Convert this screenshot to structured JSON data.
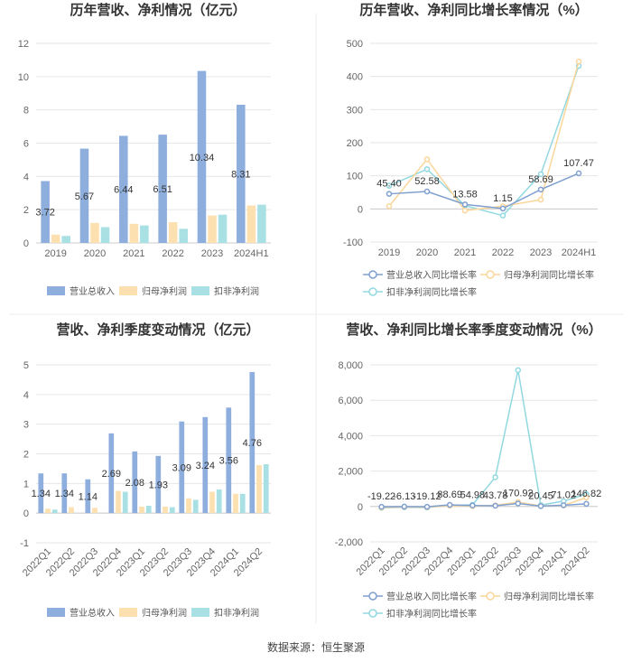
{
  "colors": {
    "revenue": "#8eaedd",
    "net": "#fde0b0",
    "deducted": "#a8e0e4",
    "revenue_line": "#7f9fcf",
    "net_line": "#fbd69a",
    "deducted_line": "#92d8e0",
    "grid": "#e6e6e6",
    "axis": "#cccccc"
  },
  "legend": {
    "bars": [
      "营业总收入",
      "归母净利润",
      "扣非净利润"
    ],
    "lines": [
      "营业总收入同比增长率",
      "归母净利润同比增长率",
      "扣非净利润同比增长率"
    ]
  },
  "source_text": "数据来源：恒生聚源",
  "chart_data": [
    {
      "type": "bar",
      "title": "历年营收、净利情况（亿元）",
      "categories": [
        "2019",
        "2020",
        "2021",
        "2022",
        "2023",
        "2024H1"
      ],
      "ylim": [
        0,
        12
      ],
      "yticks": [
        0,
        2,
        4,
        6,
        8,
        10,
        12
      ],
      "series": [
        {
          "name": "营业总收入",
          "values": [
            3.72,
            5.67,
            6.44,
            6.51,
            10.34,
            8.31
          ]
        },
        {
          "name": "归母净利润",
          "values": [
            0.5,
            1.2,
            1.15,
            1.25,
            1.65,
            2.25
          ]
        },
        {
          "name": "扣非净利润",
          "values": [
            0.42,
            0.95,
            1.05,
            0.85,
            1.7,
            2.3
          ]
        }
      ],
      "data_labels": [
        "3.72",
        "5.67",
        "6.44",
        "6.51",
        "10.34",
        "8.31"
      ]
    },
    {
      "type": "line",
      "title": "历年营收、净利同比增长率情况（%）",
      "categories": [
        "2019",
        "2020",
        "2021",
        "2022",
        "2023",
        "2024H1"
      ],
      "ylim": [
        -100,
        500
      ],
      "yticks": [
        -100,
        0,
        100,
        200,
        300,
        400,
        500
      ],
      "series": [
        {
          "name": "营业总收入同比增长率",
          "values": [
            45.4,
            52.58,
            13.58,
            1.15,
            58.69,
            107.47
          ]
        },
        {
          "name": "归母净利润同比增长率",
          "values": [
            8,
            150,
            -5,
            8,
            28,
            445
          ]
        },
        {
          "name": "扣非净利润同比增长率",
          "values": [
            70,
            120,
            10,
            -20,
            105,
            432
          ]
        }
      ],
      "data_labels": [
        "45.40",
        "52.58",
        "13.58",
        "1.15",
        "58.69",
        "107.47"
      ]
    },
    {
      "type": "bar",
      "title": "营收、净利季度变动情况（亿元）",
      "categories": [
        "2022Q1",
        "2022Q2",
        "2022Q3",
        "2022Q4",
        "2023Q1",
        "2023Q2",
        "2023Q3",
        "2023Q4",
        "2024Q1",
        "2024Q2"
      ],
      "ylim": [
        -1,
        5
      ],
      "yticks": [
        -1,
        0,
        1,
        2,
        3,
        4,
        5
      ],
      "series": [
        {
          "name": "营业总收入",
          "values": [
            1.34,
            1.34,
            1.14,
            2.69,
            2.08,
            1.93,
            3.09,
            3.24,
            3.56,
            4.76
          ]
        },
        {
          "name": "归母净利润",
          "values": [
            0.15,
            0.2,
            0.18,
            0.75,
            0.22,
            0.22,
            0.5,
            0.72,
            0.65,
            1.62
          ]
        },
        {
          "name": "扣非净利润",
          "values": [
            0.12,
            0.0,
            0.0,
            0.72,
            0.25,
            0.2,
            0.45,
            0.8,
            0.65,
            1.65
          ]
        }
      ],
      "data_labels": [
        "1.34",
        "1.34",
        "1.14",
        "2.69",
        "2.08",
        "1.93",
        "3.09",
        "3.24",
        "3.56",
        "4.76"
      ]
    },
    {
      "type": "line",
      "title": "营收、净利同比增长率季度变动情况（%）",
      "categories": [
        "2022Q1",
        "2022Q2",
        "2022Q3",
        "2022Q4",
        "2023Q1",
        "2023Q2",
        "2023Q3",
        "2023Q4",
        "2024Q1",
        "2024Q2"
      ],
      "ylim": [
        -2000,
        8000
      ],
      "yticks": [
        -2000,
        0,
        2000,
        4000,
        6000,
        8000
      ],
      "ytick_labels": [
        "-2,000",
        "0",
        "2,000",
        "4,000",
        "6,000",
        "8,000"
      ],
      "series": [
        {
          "name": "营业总收入同比增长率",
          "values": [
            -19.22,
            -6.13,
            -19.12,
            88.69,
            54.98,
            43.78,
            170.92,
            20.45,
            71.02,
            146.82
          ]
        },
        {
          "name": "归母净利润同比增长率",
          "values": [
            -60,
            -30,
            -40,
            50,
            20,
            60,
            250,
            30,
            60,
            500
          ]
        },
        {
          "name": "扣非净利润同比增长率",
          "values": [
            -80,
            -50,
            -60,
            60,
            100,
            1650,
            7700,
            80,
            300,
            700
          ]
        }
      ],
      "data_labels": [
        "-19.22",
        "-6.13",
        "-19.12",
        "88.69",
        "54.98",
        "43.78",
        "170.92",
        "20.45",
        "71.02",
        "146.82"
      ]
    }
  ]
}
